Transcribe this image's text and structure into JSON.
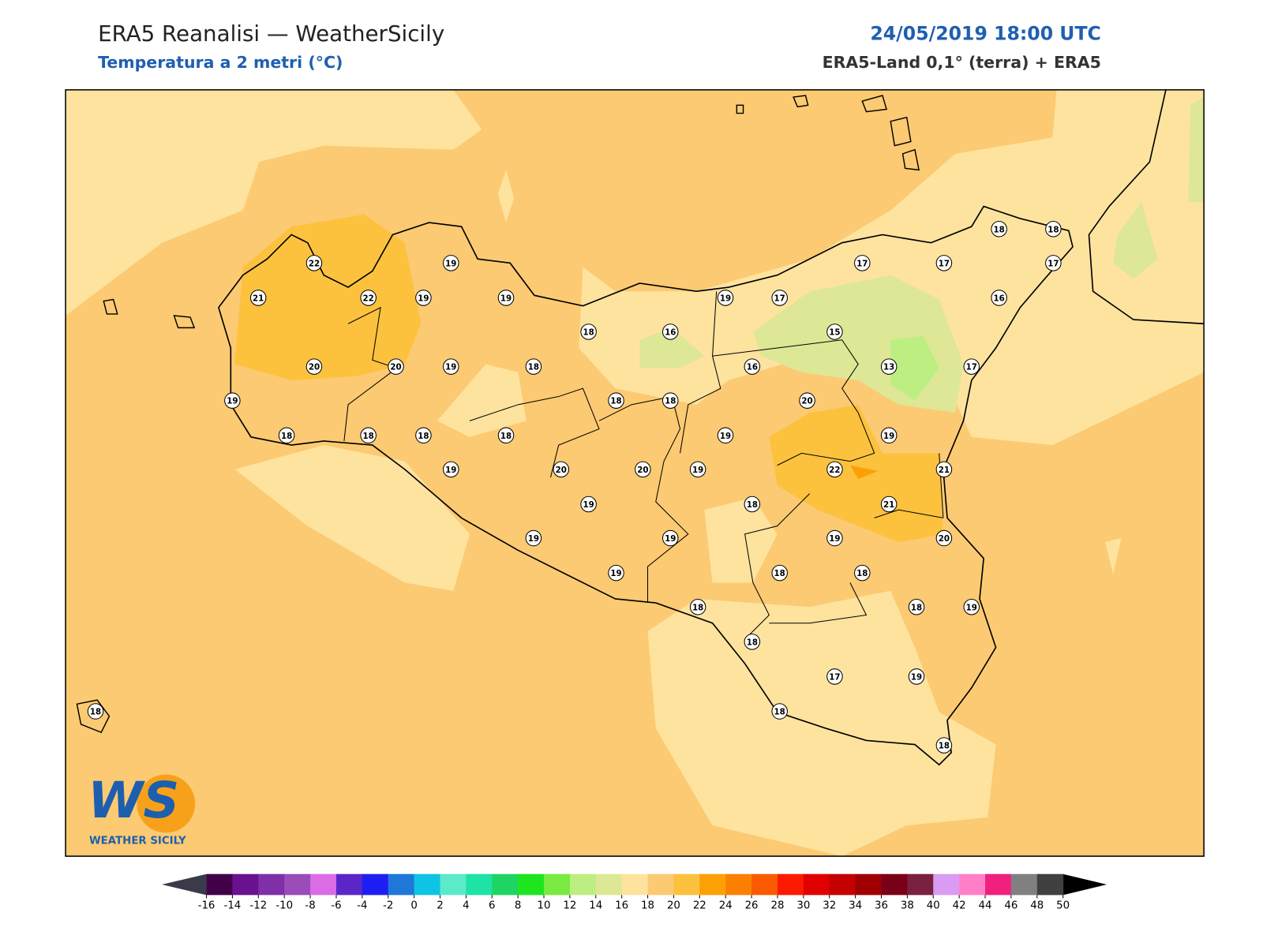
{
  "header": {
    "title": "ERA5 Reanalisi — WeatherSicily",
    "subtitle": "Temperatura a 2 metri (°C)",
    "datetime": "24/05/2019 18:00 UTC",
    "source": "ERA5-Land 0,1° (terra) + ERA5"
  },
  "logo": {
    "mark": "WS",
    "name": "WEATHER SICILY"
  },
  "stations": [
    18,
    18,
    22,
    19,
    17,
    17,
    17,
    21,
    22,
    19,
    19,
    19,
    17,
    16,
    18,
    16,
    15,
    20,
    20,
    19,
    18,
    16,
    13,
    17,
    19,
    18,
    18,
    20,
    18,
    18,
    18,
    18,
    19,
    19,
    19,
    20,
    20,
    19,
    22,
    21,
    19,
    18,
    21,
    19,
    19,
    19,
    20,
    19,
    18,
    18,
    18,
    18,
    19,
    18,
    17,
    19,
    18,
    18,
    18
  ],
  "colorbar": {
    "levels": [
      -16,
      -14,
      -12,
      -10,
      -8,
      -6,
      -4,
      -2,
      0,
      2,
      4,
      6,
      8,
      10,
      12,
      14,
      16,
      18,
      20,
      22,
      24,
      26,
      28,
      30,
      32,
      34,
      36,
      38,
      40,
      42,
      44,
      46,
      48,
      50
    ],
    "colors": [
      "#420048",
      "#6a1190",
      "#7f2fa7",
      "#9a4cb8",
      "#db6ce6",
      "#5a26c8",
      "#1e1ef2",
      "#1f77d8",
      "#0fc3e4",
      "#5bebc9",
      "#1ee2a6",
      "#1ed563",
      "#1ee61e",
      "#79ea3f",
      "#bdee82",
      "#dee795",
      "#fee39f",
      "#fcca72",
      "#fcc23e",
      "#fca006",
      "#fc8000",
      "#fc5a00",
      "#fc1a00",
      "#e00000",
      "#c40000",
      "#a00000",
      "#7a0018",
      "#7a2040",
      "#d99cf2",
      "#ff80c8",
      "#f0207f",
      "#808080",
      "#404040"
    ],
    "under": "#3a3a4a",
    "over": "#000000"
  }
}
